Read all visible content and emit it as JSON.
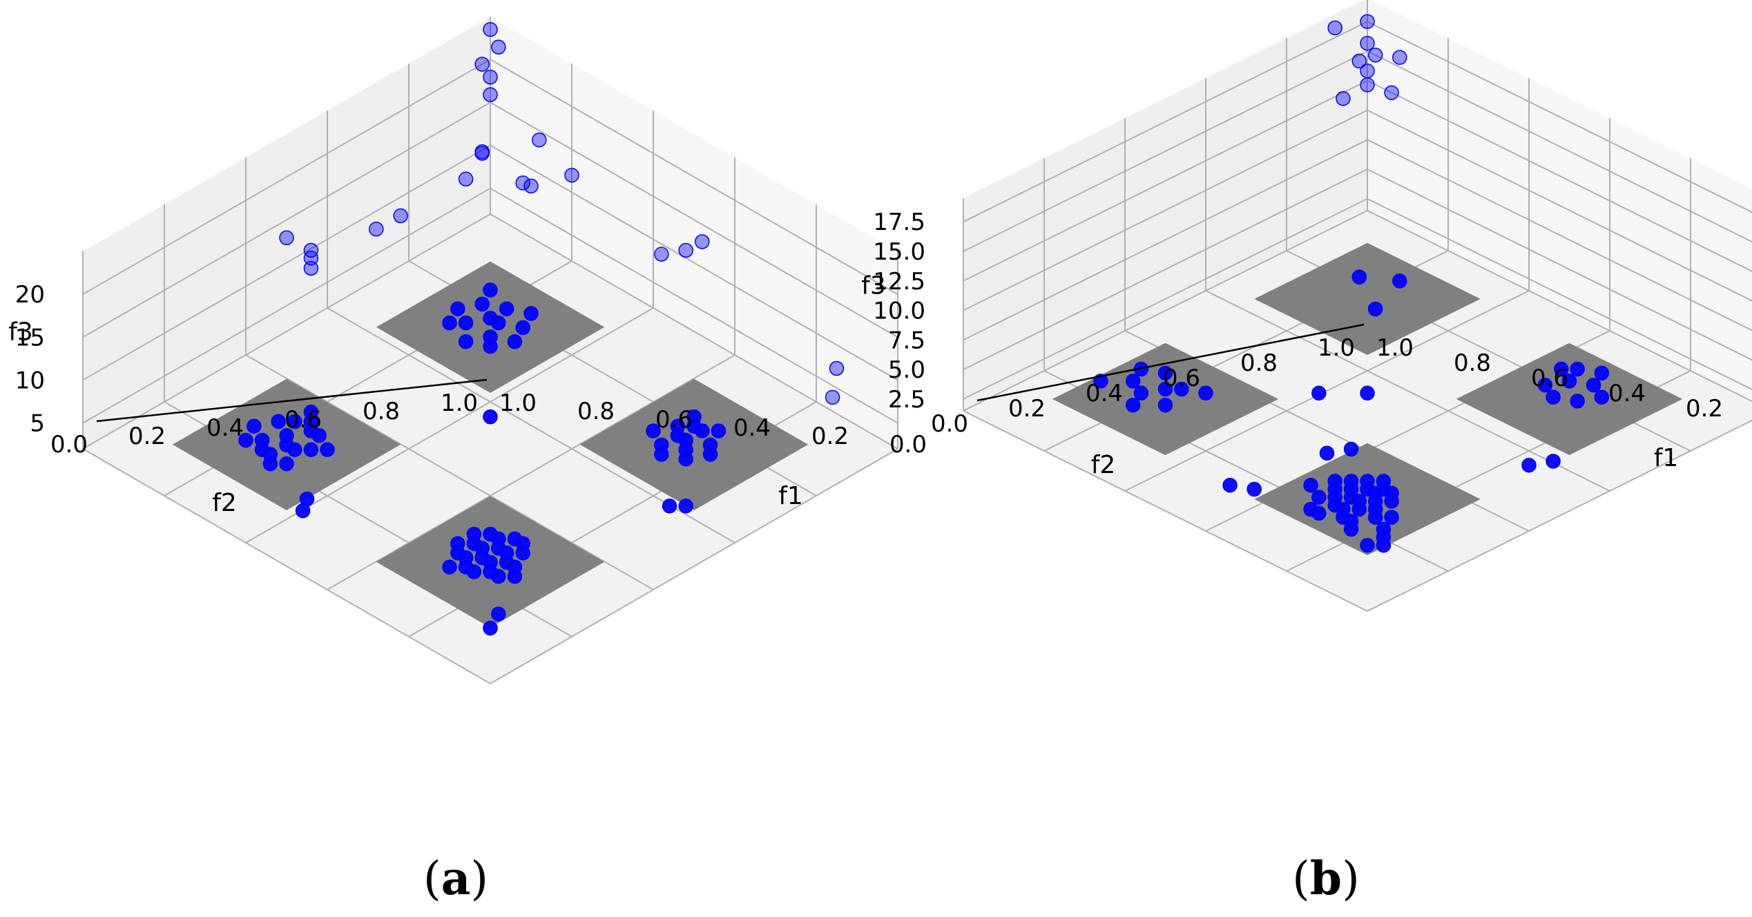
{
  "figure": {
    "background": "#ffffff"
  },
  "colors": {
    "point": "#0000ff",
    "plane": "#808080",
    "grid": "#b0b0b0",
    "pane": "#f2f2f2"
  },
  "chart_data": [
    {
      "id": "a",
      "type": "scatter",
      "projection": "3d",
      "title": "",
      "label_open": "(",
      "label_letter": "a",
      "label_close": ")",
      "xlabel": "f1",
      "ylabel": "f2",
      "zlabel": "f3",
      "xlim": [
        0,
        1
      ],
      "ylim": [
        0,
        1
      ],
      "zlim": [
        2,
        25
      ],
      "xticks": [
        "0.0",
        "0.2",
        "0.4",
        "0.6",
        "0.8",
        "1.0"
      ],
      "yticks": [
        "0.0",
        "0.2",
        "0.4",
        "0.6",
        "0.8",
        "1.0"
      ],
      "zticks": [
        "5",
        "10",
        "15",
        "20"
      ],
      "zticks_values": [
        5,
        10,
        15,
        20
      ],
      "planes": [
        {
          "f1": 0.25,
          "f2": 0.25,
          "z": 2.5
        },
        {
          "f1": 0.25,
          "f2": 0.75,
          "z": 2.5
        },
        {
          "f1": 0.75,
          "f2": 0.25,
          "z": 2.5
        },
        {
          "f1": 0.75,
          "f2": 0.75,
          "z": 2.5
        }
      ],
      "points": [
        [
          0.18,
          0.18,
          3.0
        ],
        [
          0.2,
          0.22,
          3.0
        ],
        [
          0.24,
          0.2,
          3.0
        ],
        [
          0.26,
          0.24,
          3.0
        ],
        [
          0.22,
          0.28,
          3.0
        ],
        [
          0.28,
          0.28,
          3.0
        ],
        [
          0.3,
          0.22,
          3.0
        ],
        [
          0.2,
          0.3,
          3.0
        ],
        [
          0.26,
          0.32,
          3.0
        ],
        [
          0.32,
          0.26,
          3.0
        ],
        [
          0.18,
          0.26,
          3.0
        ],
        [
          0.28,
          0.18,
          3.0
        ],
        [
          0.24,
          0.24,
          3.0
        ],
        [
          0.3,
          0.3,
          3.0
        ],
        [
          0.22,
          0.7,
          3.0
        ],
        [
          0.24,
          0.74,
          3.0
        ],
        [
          0.26,
          0.7,
          3.0
        ],
        [
          0.28,
          0.76,
          3.0
        ],
        [
          0.22,
          0.78,
          3.0
        ],
        [
          0.2,
          0.72,
          3.0
        ],
        [
          0.3,
          0.74,
          3.0
        ],
        [
          0.26,
          0.8,
          3.0
        ],
        [
          0.24,
          0.68,
          3.0
        ],
        [
          0.28,
          0.7,
          3.0
        ],
        [
          0.18,
          0.76,
          3.0
        ],
        [
          0.3,
          0.8,
          3.0
        ],
        [
          0.2,
          0.8,
          3.0
        ],
        [
          0.32,
          0.72,
          3.0
        ],
        [
          0.26,
          0.76,
          3.0
        ],
        [
          0.22,
          0.66,
          3.0
        ],
        [
          0.28,
          0.82,
          3.0
        ],
        [
          0.24,
          0.8,
          3.0
        ],
        [
          0.74,
          0.22,
          3.0
        ],
        [
          0.72,
          0.26,
          3.0
        ],
        [
          0.7,
          0.24,
          3.0
        ],
        [
          0.76,
          0.28,
          3.0
        ],
        [
          0.78,
          0.24,
          3.0
        ],
        [
          0.72,
          0.3,
          3.0
        ],
        [
          0.74,
          0.32,
          3.0
        ],
        [
          0.7,
          0.2,
          3.0
        ],
        [
          0.78,
          0.3,
          3.0
        ],
        [
          0.76,
          0.2,
          3.0
        ],
        [
          0.68,
          0.28,
          3.0
        ],
        [
          0.8,
          0.26,
          3.0
        ],
        [
          0.74,
          0.26,
          3.0
        ],
        [
          0.72,
          0.22,
          3.0
        ],
        [
          0.7,
          0.74,
          3.0
        ],
        [
          0.72,
          0.7,
          3.0
        ],
        [
          0.74,
          0.76,
          3.0
        ],
        [
          0.76,
          0.72,
          3.0
        ],
        [
          0.78,
          0.78,
          3.0
        ],
        [
          0.72,
          0.78,
          3.0
        ],
        [
          0.8,
          0.74,
          3.0
        ],
        [
          0.68,
          0.76,
          3.0
        ],
        [
          0.74,
          0.68,
          3.0
        ],
        [
          0.76,
          0.8,
          3.0
        ],
        [
          0.7,
          0.7,
          3.0
        ],
        [
          0.78,
          0.7,
          3.0
        ],
        [
          0.74,
          0.72,
          3.0
        ],
        [
          0.72,
          0.74,
          3.0
        ],
        [
          0.76,
          0.76,
          3.0
        ],
        [
          0.7,
          0.78,
          3.0
        ],
        [
          0.8,
          0.78,
          3.0
        ],
        [
          0.74,
          0.8,
          3.0
        ],
        [
          0.78,
          0.74,
          3.0
        ],
        [
          0.72,
          0.82,
          3.0
        ],
        [
          0.76,
          0.68,
          3.0
        ],
        [
          0.82,
          0.76,
          3.0
        ],
        [
          0.68,
          0.72,
          3.0
        ],
        [
          0.0,
          0.02,
          20.0
        ],
        [
          0.02,
          0.0,
          22.0
        ],
        [
          0.01,
          0.01,
          18.5
        ],
        [
          0.0,
          0.0,
          23.5
        ],
        [
          0.02,
          0.02,
          17.0
        ],
        [
          0.04,
          0.06,
          12.0
        ],
        [
          0.06,
          0.12,
          11.0
        ],
        [
          0.08,
          0.1,
          14.0
        ],
        [
          0.12,
          0.04,
          10.0
        ],
        [
          0.14,
          0.02,
          15.0
        ],
        [
          0.2,
          0.0,
          12.0
        ],
        [
          0.1,
          0.0,
          8.0
        ],
        [
          0.02,
          0.3,
          9.0
        ],
        [
          0.04,
          0.26,
          10.0
        ],
        [
          0.02,
          0.46,
          10.0
        ],
        [
          0.04,
          0.48,
          12.0
        ],
        [
          0.02,
          0.52,
          14.0
        ],
        [
          0.06,
          0.5,
          11.0
        ],
        [
          0.5,
          0.02,
          12.0
        ],
        [
          0.46,
          0.04,
          11.0
        ],
        [
          0.52,
          0.0,
          13.0
        ],
        [
          0.9,
          0.05,
          10.0
        ],
        [
          0.92,
          0.08,
          8.0
        ],
        [
          0.45,
          0.45,
          3.0
        ],
        [
          0.4,
          0.85,
          3.0
        ],
        [
          0.42,
          0.88,
          3.0
        ],
        [
          0.88,
          0.4,
          3.0
        ],
        [
          0.86,
          0.42,
          3.0
        ],
        [
          0.9,
          0.9,
          3.0
        ],
        [
          0.88,
          0.86,
          3.0
        ]
      ]
    },
    {
      "id": "b",
      "type": "scatter",
      "projection": "3d",
      "title": "",
      "label_open": "(",
      "label_letter": "b",
      "label_close": ")",
      "xlabel": "f1",
      "ylabel": "f2",
      "zlabel": "f3",
      "xlim": [
        0,
        1
      ],
      "ylim": [
        0,
        1
      ],
      "zlim": [
        1.5,
        19.5
      ],
      "xticks": [
        "0.0",
        "0.2",
        "0.4",
        "0.6",
        "0.8",
        "1.0"
      ],
      "yticks": [
        "0.0",
        "0.2",
        "0.4",
        "0.6",
        "0.8",
        "1.0"
      ],
      "zticks": [
        "2.5",
        "5.0",
        "7.5",
        "10.0",
        "12.5",
        "15.0",
        "17.5"
      ],
      "zticks_values": [
        2.5,
        5.0,
        7.5,
        10.0,
        12.5,
        15.0,
        17.5
      ],
      "planes": [
        {
          "f1": 0.25,
          "f2": 0.25,
          "z": 2.5
        },
        {
          "f1": 0.25,
          "f2": 0.75,
          "z": 2.5
        },
        {
          "f1": 0.75,
          "f2": 0.25,
          "z": 2.5
        },
        {
          "f1": 0.75,
          "f2": 0.75,
          "z": 2.5
        }
      ],
      "points": [
        [
          0.2,
          0.22,
          3.0
        ],
        [
          0.3,
          0.28,
          3.0
        ],
        [
          0.26,
          0.18,
          3.0
        ],
        [
          0.2,
          0.7,
          3.0
        ],
        [
          0.24,
          0.74,
          3.0
        ],
        [
          0.22,
          0.78,
          3.0
        ],
        [
          0.18,
          0.76,
          3.0
        ],
        [
          0.26,
          0.72,
          3.0
        ],
        [
          0.28,
          0.78,
          3.0
        ],
        [
          0.24,
          0.82,
          3.0
        ],
        [
          0.3,
          0.7,
          3.0
        ],
        [
          0.16,
          0.72,
          3.0
        ],
        [
          0.14,
          0.8,
          3.0
        ],
        [
          0.72,
          0.22,
          3.0
        ],
        [
          0.74,
          0.28,
          3.0
        ],
        [
          0.7,
          0.18,
          3.0
        ],
        [
          0.76,
          0.2,
          3.0
        ],
        [
          0.78,
          0.26,
          3.0
        ],
        [
          0.7,
          0.26,
          3.0
        ],
        [
          0.8,
          0.22,
          3.0
        ],
        [
          0.68,
          0.2,
          3.0
        ],
        [
          0.74,
          0.16,
          3.0
        ],
        [
          0.74,
          0.74,
          3.0
        ],
        [
          0.72,
          0.76,
          3.0
        ],
        [
          0.76,
          0.72,
          3.0
        ],
        [
          0.74,
          0.78,
          3.0
        ],
        [
          0.78,
          0.76,
          3.0
        ],
        [
          0.7,
          0.74,
          3.0
        ],
        [
          0.76,
          0.78,
          3.0
        ],
        [
          0.72,
          0.72,
          3.0
        ],
        [
          0.78,
          0.72,
          3.0
        ],
        [
          0.74,
          0.7,
          3.0
        ],
        [
          0.7,
          0.78,
          3.0
        ],
        [
          0.8,
          0.74,
          3.0
        ],
        [
          0.76,
          0.74,
          3.0
        ],
        [
          0.72,
          0.8,
          3.0
        ],
        [
          0.78,
          0.8,
          3.0
        ],
        [
          0.68,
          0.76,
          3.0
        ],
        [
          0.8,
          0.78,
          3.0
        ],
        [
          0.76,
          0.82,
          3.0
        ],
        [
          0.82,
          0.8,
          3.0
        ],
        [
          0.7,
          0.82,
          3.0
        ],
        [
          0.74,
          0.82,
          3.0
        ],
        [
          0.84,
          0.78,
          3.0
        ],
        [
          0.66,
          0.8,
          3.0
        ],
        [
          0.8,
          0.84,
          3.0
        ],
        [
          0.86,
          0.82,
          3.0
        ],
        [
          0.74,
          0.86,
          3.0
        ],
        [
          0.88,
          0.84,
          3.0
        ],
        [
          0.78,
          0.84,
          3.0
        ],
        [
          0.62,
          0.66,
          3.0
        ],
        [
          0.6,
          0.7,
          3.0
        ],
        [
          0.9,
          0.86,
          3.0
        ],
        [
          0.88,
          0.88,
          3.0
        ],
        [
          0.72,
          0.86,
          3.0
        ],
        [
          0.82,
          0.86,
          3.0
        ],
        [
          0.0,
          0.0,
          17.5
        ],
        [
          0.01,
          0.01,
          16.0
        ],
        [
          0.02,
          0.0,
          15.0
        ],
        [
          0.0,
          0.02,
          14.5
        ],
        [
          0.02,
          0.02,
          14.0
        ],
        [
          0.04,
          0.04,
          13.5
        ],
        [
          0.06,
          0.0,
          12.5
        ],
        [
          0.0,
          0.06,
          12.0
        ],
        [
          0.1,
          0.02,
          16.5
        ],
        [
          0.02,
          0.1,
          19.0
        ],
        [
          0.5,
          0.5,
          3.0
        ],
        [
          0.44,
          0.56,
          3.0
        ],
        [
          0.9,
          0.44,
          3.0
        ],
        [
          0.88,
          0.48,
          3.0
        ],
        [
          0.56,
          0.9,
          3.0
        ],
        [
          0.6,
          0.88,
          3.0
        ]
      ]
    }
  ]
}
